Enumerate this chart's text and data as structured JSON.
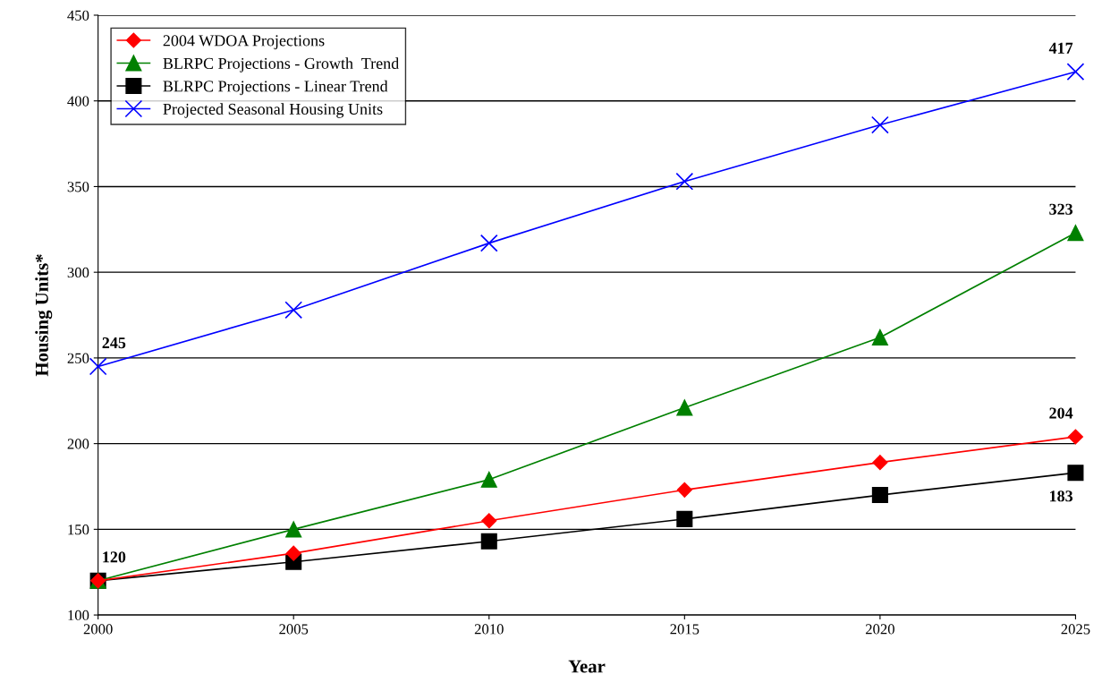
{
  "chart_data": {
    "type": "line",
    "xlabel": "Year",
    "ylabel": "Housing Units*",
    "x": [
      2000,
      2005,
      2010,
      2015,
      2020,
      2025
    ],
    "xlim": [
      2000,
      2025
    ],
    "xticks": [
      2000,
      2005,
      2010,
      2015,
      2020,
      2025
    ],
    "ylim": [
      100,
      450
    ],
    "yticks": [
      100,
      150,
      200,
      250,
      300,
      350,
      400,
      450
    ],
    "grid": "y",
    "legend": "top left",
    "series": [
      {
        "name": "2004 WDOA Projections",
        "color": "#ff0000",
        "marker": "diamond",
        "values": [
          120,
          136,
          155,
          173,
          189,
          204
        ],
        "value_labels": [
          null,
          null,
          null,
          null,
          null,
          "204"
        ]
      },
      {
        "name": "BLRPC Projections - Growth  Trend",
        "color": "#008000",
        "marker": "triangle",
        "values": [
          120,
          150,
          179,
          221,
          262,
          323
        ],
        "value_labels": [
          null,
          null,
          null,
          null,
          null,
          "323"
        ]
      },
      {
        "name": "BLRPC Projections - Linear Trend",
        "color": "#000000",
        "marker": "square",
        "values": [
          120,
          131,
          143,
          156,
          170,
          183
        ],
        "value_labels": [
          "120",
          null,
          null,
          null,
          null,
          "183"
        ]
      },
      {
        "name": "Projected Seasonal Housing Units",
        "color": "#0000ff",
        "marker": "cross",
        "values": [
          245,
          278,
          317,
          353,
          386,
          417
        ],
        "value_labels": [
          "245",
          null,
          null,
          null,
          null,
          "417"
        ]
      }
    ]
  }
}
